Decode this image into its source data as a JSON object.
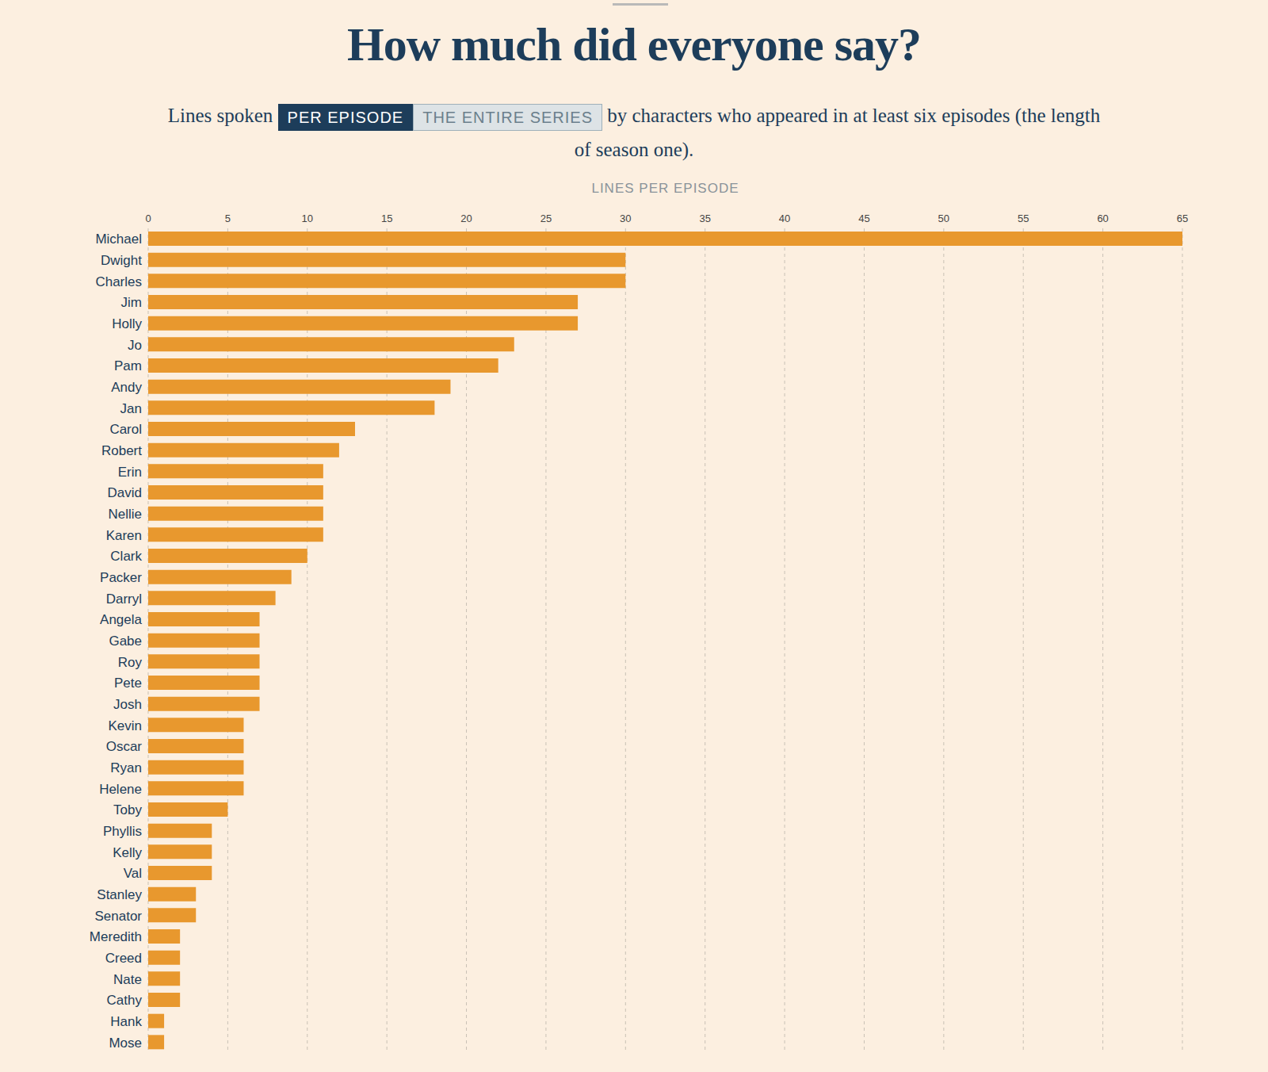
{
  "chart_data": {
    "type": "bar",
    "orientation": "horizontal",
    "title": "How much did everyone say?",
    "subtitle": {
      "before": "Lines spoken",
      "options": [
        "PER EPISODE",
        "THE ENTIRE SERIES"
      ],
      "after": "by characters who appeared in at least six episodes (the length of season one)."
    },
    "x_label": "LINES PER EPISODE",
    "categories": [
      "Michael",
      "Dwight",
      "Charles",
      "Jim",
      "Holly",
      "Jo",
      "Pam",
      "Andy",
      "Jan",
      "Carol",
      "Robert",
      "Erin",
      "David",
      "Nellie",
      "Karen",
      "Clark",
      "Packer",
      "Darryl",
      "Angela",
      "Gabe",
      "Roy",
      "Pete",
      "Josh",
      "Kevin",
      "Oscar",
      "Ryan",
      "Helene",
      "Toby",
      "Phyllis",
      "Kelly",
      "Val",
      "Stanley",
      "Senator",
      "Meredith",
      "Creed",
      "Nate",
      "Cathy",
      "Hank",
      "Mose"
    ],
    "values": [
      65,
      30,
      30,
      27,
      27,
      23,
      22,
      19,
      18,
      13,
      12,
      11,
      11,
      11,
      11,
      10,
      9,
      8,
      7,
      7,
      7,
      7,
      7,
      6,
      6,
      6,
      6,
      5,
      4,
      4,
      4,
      3,
      3,
      2,
      2,
      2,
      2,
      1,
      1
    ],
    "color": "#e8982e",
    "xlim": [
      0,
      65
    ],
    "xticks": [
      0,
      5,
      10,
      15,
      20,
      25,
      30,
      35,
      40,
      45,
      50,
      55,
      60,
      65
    ],
    "grid": true
  }
}
